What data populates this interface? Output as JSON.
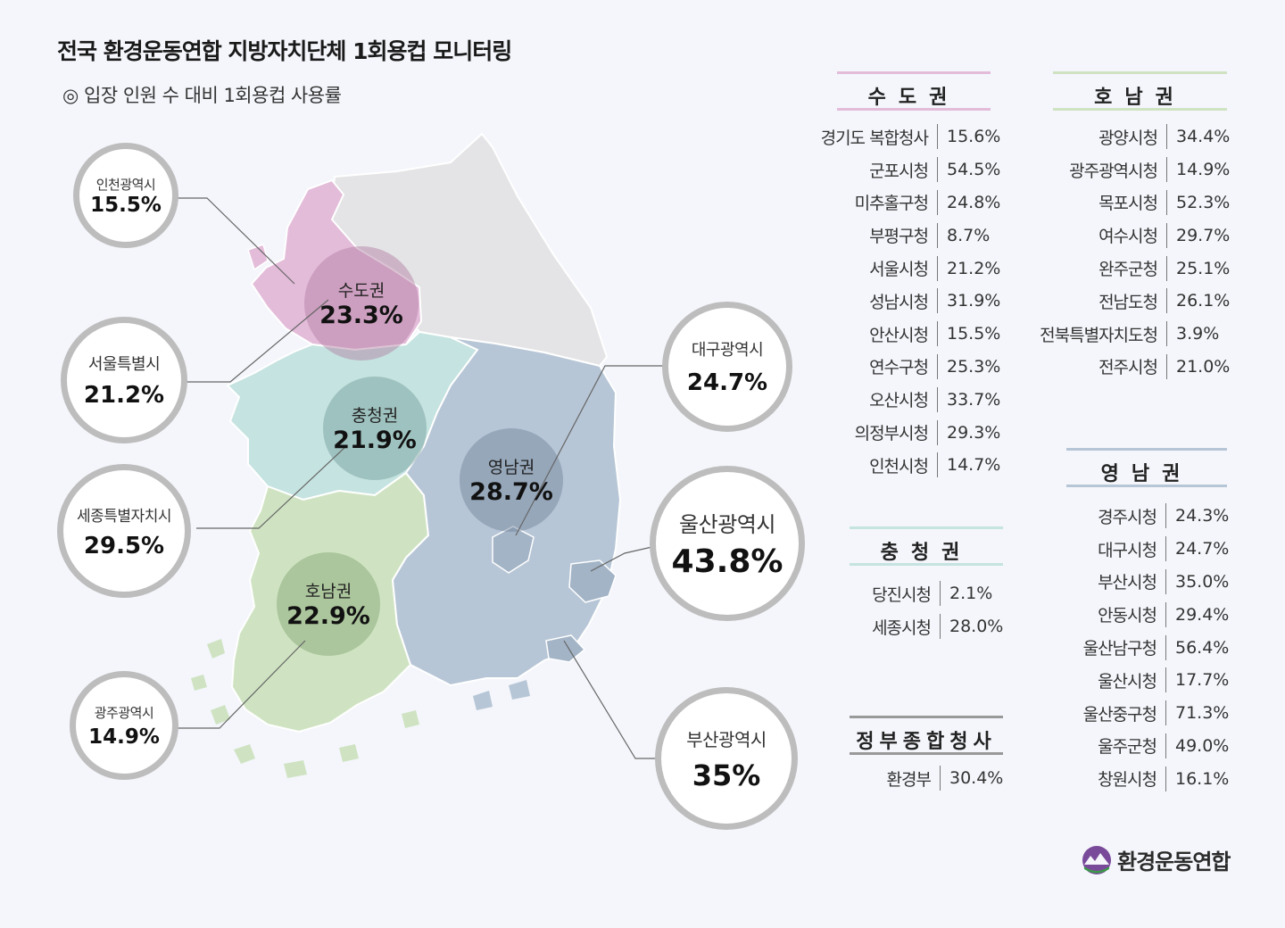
{
  "title": "전국 환경운동연합 지방자치단체 1회용컵 모니터링",
  "subtitle": "◎ 입장 인원 수 대비 1회용컵 사용률",
  "regions": {
    "sudo": {
      "name": "수도권",
      "value": "23.3%"
    },
    "chungcheong": {
      "name": "충청권",
      "value": "21.9%"
    },
    "yeongnam": {
      "name": "영남권",
      "value": "28.7%"
    },
    "honam": {
      "name": "호남권",
      "value": "22.9%"
    }
  },
  "cities": {
    "incheon": {
      "name": "인천광역시",
      "value": "15.5%"
    },
    "seoul": {
      "name": "서울특별시",
      "value": "21.2%"
    },
    "sejong": {
      "name": "세종특별자치시",
      "value": "29.5%"
    },
    "gwangju": {
      "name": "광주광역시",
      "value": "14.9%"
    },
    "daegu": {
      "name": "대구광역시",
      "value": "24.7%"
    },
    "ulsan": {
      "name": "울산광역시",
      "value": "43.8%"
    },
    "busan": {
      "name": "부산광역시",
      "value": "35%"
    }
  },
  "tables": {
    "sudo": {
      "header": "수도권",
      "rows": [
        {
          "name": "경기도 복합청사",
          "value": "15.6%"
        },
        {
          "name": "군포시청",
          "value": "54.5%"
        },
        {
          "name": "미추홀구청",
          "value": "24.8%"
        },
        {
          "name": "부평구청",
          "value": "8.7%"
        },
        {
          "name": "서울시청",
          "value": "21.2%"
        },
        {
          "name": "성남시청",
          "value": "31.9%"
        },
        {
          "name": "안산시청",
          "value": "15.5%"
        },
        {
          "name": "연수구청",
          "value": "25.3%"
        },
        {
          "name": "오산시청",
          "value": "33.7%"
        },
        {
          "name": "의정부시청",
          "value": "29.3%"
        },
        {
          "name": "인천시청",
          "value": "14.7%"
        }
      ]
    },
    "honam": {
      "header": "호남권",
      "rows": [
        {
          "name": "광양시청",
          "value": "34.4%"
        },
        {
          "name": "광주광역시청",
          "value": "14.9%"
        },
        {
          "name": "목포시청",
          "value": "52.3%"
        },
        {
          "name": "여수시청",
          "value": "29.7%"
        },
        {
          "name": "완주군청",
          "value": "25.1%"
        },
        {
          "name": "전남도청",
          "value": "26.1%"
        },
        {
          "name": "전북특별자치도청",
          "value": "3.9%"
        },
        {
          "name": "전주시청",
          "value": "21.0%"
        }
      ]
    },
    "chungcheong": {
      "header": "충청권",
      "rows": [
        {
          "name": "당진시청",
          "value": "2.1%"
        },
        {
          "name": "세종시청",
          "value": "28.0%"
        }
      ]
    },
    "gov": {
      "header": "정부종합청사",
      "rows": [
        {
          "name": "환경부",
          "value": "30.4%"
        }
      ]
    },
    "yeongnam": {
      "header": "영남권",
      "rows": [
        {
          "name": "경주시청",
          "value": "24.3%"
        },
        {
          "name": "대구시청",
          "value": "24.7%"
        },
        {
          "name": "부산시청",
          "value": "35.0%"
        },
        {
          "name": "안동시청",
          "value": "29.4%"
        },
        {
          "name": "울산남구청",
          "value": "56.4%"
        },
        {
          "name": "울산시청",
          "value": "17.7%"
        },
        {
          "name": "울산중구청",
          "value": "71.3%"
        },
        {
          "name": "울주군청",
          "value": "49.0%"
        },
        {
          "name": "창원시청",
          "value": "16.1%"
        }
      ]
    }
  },
  "logo_text": "환경운동연합",
  "colors": {
    "sudo": "#e3bcd9",
    "chungcheong": "#c5e3e0",
    "yeongnam": "#b7c6d6",
    "honam": "#cfe3c2",
    "gangwon": "#e4e4e6",
    "sudo_line": "#dcb4d2",
    "honam_line": "#bcd6b4",
    "chung_line": "#a6d4d2",
    "yeong_line": "#a6b6c8",
    "gov_line": "#999999"
  }
}
